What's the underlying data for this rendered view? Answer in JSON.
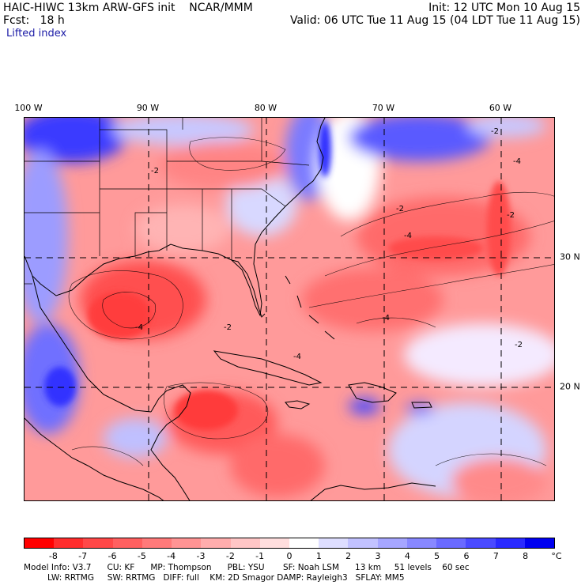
{
  "header": {
    "title_left": "HAIC-HIWC 13km ARW-GFS init    NCAR/MMM",
    "init": "Init: 12 UTC Mon 10 Aug 15",
    "fcst": "Fcst:   18 h",
    "valid": "Valid: 06 UTC Tue 11 Aug 15 (04 LDT Tue 11 Aug 15)",
    "field": "Lifted index"
  },
  "map": {
    "lon_labels": [
      "100 W",
      "90 W",
      "80 W",
      "70 W",
      "60 W"
    ],
    "lat_labels": [
      "30 N",
      "20 N"
    ],
    "contour_labels": [
      "-2",
      "-4",
      "-2",
      "-4",
      "-2",
      "-4",
      "-2",
      "-2",
      "-4",
      "-4",
      "-2"
    ]
  },
  "colorbar": {
    "ticks": [
      "-8",
      "-7",
      "-6",
      "-5",
      "-4",
      "-3",
      "-2",
      "-1",
      "0",
      "1",
      "2",
      "3",
      "4",
      "5",
      "6",
      "7",
      "8"
    ],
    "unit": "°C",
    "colors": [
      "#ff0000",
      "#ff2d2d",
      "#ff4848",
      "#ff6060",
      "#ff7a7a",
      "#ff9494",
      "#ffadad",
      "#ffc6c6",
      "#ffdede",
      "#ffffff",
      "#dedeff",
      "#c2c2ff",
      "#a6a6ff",
      "#8888ff",
      "#6a6aff",
      "#4a4aff",
      "#2a2aff",
      "#0000f0"
    ]
  },
  "footer": {
    "line1": "Model Info: V3.7      CU: KF      MP: Thompson      PBL: YSU       SF: Noah LSM      13 km     51 levels    60 sec",
    "line2": "         LW: RRTMG     SW: RRTMG   DIFF: full    KM: 2D Smagor DAMP: Rayleigh3   SFLAY: MM5"
  }
}
